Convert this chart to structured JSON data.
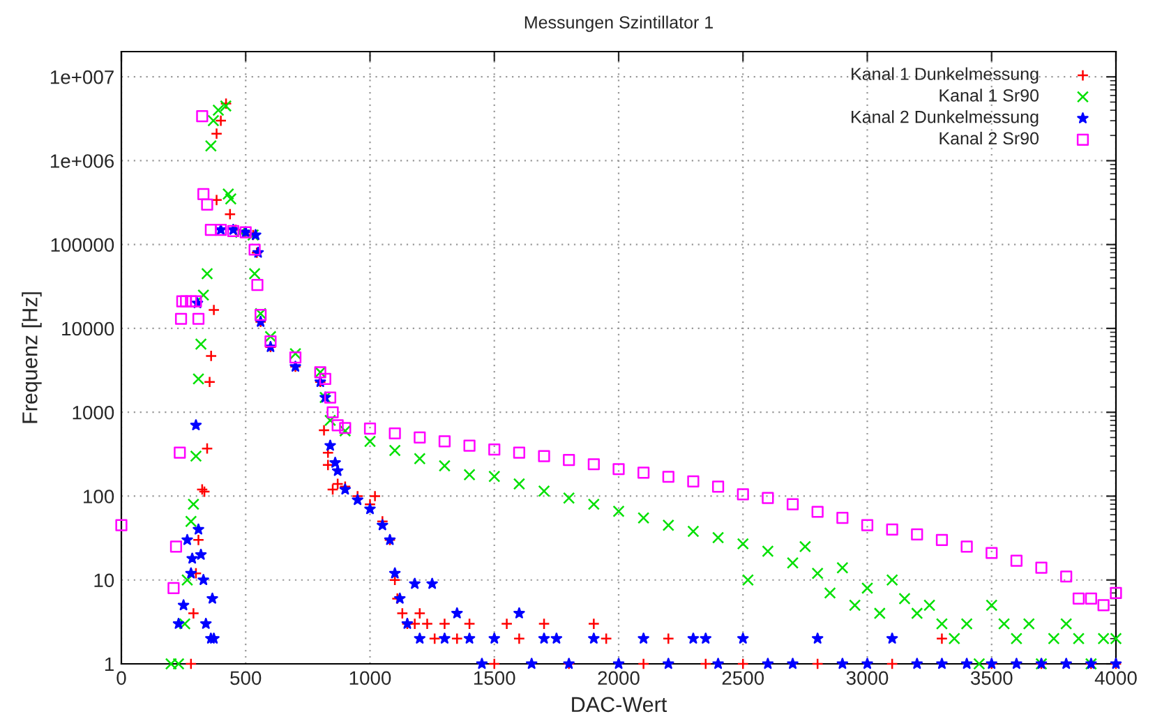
{
  "chart_data": {
    "type": "scatter",
    "title": "Messungen Szintillator 1",
    "xlabel": "DAC-Wert",
    "ylabel": "Frequenz [Hz]",
    "log": "y",
    "grid": true,
    "legend": "top right",
    "xlim": [
      0,
      4000
    ],
    "xticks": [
      0,
      500,
      1000,
      1500,
      2000,
      2500,
      3000,
      3500,
      4000
    ],
    "ylim": [
      1,
      20000000
    ],
    "yticks": [
      1,
      10,
      100,
      1000,
      10000,
      100000,
      {
        "value": 1000000,
        "label": "1e+006"
      },
      {
        "value": 10000000,
        "label": "1e+007"
      }
    ],
    "series": [
      {
        "name": "Kanal 1 Dunkelmessung",
        "color": "#ff0000",
        "marker": "plus",
        "x": [
          280,
          290,
          300,
          310,
          325,
          334,
          345,
          355,
          361,
          372,
          383,
          383,
          400,
          421,
          437,
          460,
          500,
          530,
          545,
          560,
          600,
          700,
          800,
          815,
          831,
          831,
          850,
          870,
          900,
          950,
          1000,
          1020,
          1050,
          1080,
          1100,
          1110,
          1130,
          1150,
          1180,
          1200,
          1230,
          1260,
          1300,
          1350,
          1400,
          1500,
          1550,
          1600,
          1700,
          1800,
          1900,
          1950,
          2100,
          2200,
          2350,
          2500,
          2800,
          3100,
          3300,
          3500,
          3700,
          3900,
          4000
        ],
        "values": [
          1,
          4,
          12,
          30,
          120,
          113,
          370,
          2300,
          4700,
          16600,
          340000,
          2100000,
          3000000,
          4800000,
          230000,
          150000,
          140000,
          130000,
          80000,
          12000,
          6000,
          3500,
          2300,
          610,
          330,
          235,
          120,
          140,
          130,
          100,
          80,
          100,
          50,
          30,
          10,
          6,
          4,
          3,
          3,
          4,
          3,
          2,
          3,
          2,
          3,
          1,
          3,
          2,
          3,
          1,
          3,
          2,
          1,
          2,
          1,
          1,
          1,
          1,
          2,
          1,
          1,
          1,
          1
        ]
      },
      {
        "name": "Kanal 1 Sr90",
        "color": "#00e000",
        "marker": "cross",
        "x": [
          200,
          230,
          255,
          265,
          280,
          290,
          300,
          310,
          320,
          330,
          345,
          360,
          370,
          390,
          420,
          430,
          440,
          480,
          530,
          536,
          560,
          600,
          700,
          800,
          820,
          840,
          900,
          1000,
          1100,
          1200,
          1300,
          1400,
          1500,
          1600,
          1700,
          1800,
          1900,
          2000,
          2100,
          2200,
          2300,
          2400,
          2500,
          2520,
          2600,
          2700,
          2750,
          2800,
          2850,
          2900,
          2950,
          3000,
          3050,
          3100,
          3150,
          3200,
          3250,
          3300,
          3350,
          3400,
          3450,
          3500,
          3550,
          3600,
          3650,
          3700,
          3750,
          3800,
          3850,
          3900,
          3950,
          4000
        ],
        "values": [
          1,
          1,
          3,
          10,
          50,
          80,
          300,
          2500,
          6500,
          25000,
          45000,
          1500000,
          3000000,
          4000000,
          4500000,
          400000,
          350000,
          140000,
          130000,
          45000,
          15000,
          8000,
          5000,
          3000,
          1500,
          800,
          600,
          450,
          350,
          280,
          230,
          180,
          172,
          140,
          115,
          95,
          80,
          66,
          55,
          45,
          38,
          32,
          27,
          10,
          22,
          16,
          25,
          12,
          7,
          14,
          5,
          8,
          4,
          10,
          6,
          4,
          5,
          3,
          2,
          3,
          1,
          5,
          3,
          2,
          3,
          1,
          2,
          3,
          2,
          1,
          2,
          2
        ]
      },
      {
        "name": "Kanal 2 Dunkelmessung",
        "color": "#0000ff",
        "marker": "star",
        "x": [
          230,
          250,
          265,
          280,
          285,
          300,
          306,
          310,
          320,
          330,
          340,
          360,
          366,
          372,
          400,
          450,
          500,
          540,
          550,
          560,
          600,
          700,
          800,
          820,
          840,
          860,
          870,
          900,
          950,
          1000,
          1050,
          1080,
          1100,
          1120,
          1150,
          1180,
          1200,
          1250,
          1300,
          1350,
          1400,
          1450,
          1500,
          1600,
          1650,
          1700,
          1750,
          1800,
          1900,
          2000,
          2100,
          2200,
          2300,
          2350,
          2400,
          2500,
          2600,
          2700,
          2800,
          2900,
          3000,
          3100,
          3200,
          3300,
          3400,
          3500,
          3600,
          3700,
          3800,
          3900,
          4000
        ],
        "values": [
          3,
          5,
          30,
          12,
          18,
          700,
          20000,
          40,
          20,
          10,
          3,
          2,
          6,
          2,
          150000,
          150000,
          140000,
          130000,
          80000,
          12000,
          6000,
          3500,
          2300,
          1500,
          400,
          250,
          200,
          120,
          90,
          70,
          45,
          30,
          12,
          6,
          3,
          9,
          2,
          9,
          2,
          4,
          2,
          1,
          2,
          4,
          1,
          2,
          2,
          1,
          2,
          1,
          2,
          1,
          2,
          2,
          1,
          2,
          1,
          1,
          2,
          1,
          1,
          2,
          1,
          1,
          1,
          1,
          1,
          1,
          1,
          1,
          1
        ]
      },
      {
        "name": "Kanal 2 Sr90",
        "color": "#ff00ff",
        "marker": "square",
        "x": [
          0,
          210,
          220,
          235,
          240,
          245,
          260,
          280,
          300,
          310,
          325,
          330,
          345,
          360,
          400,
          450,
          500,
          536,
          547,
          560,
          600,
          700,
          800,
          820,
          840,
          850,
          870,
          900,
          1000,
          1100,
          1200,
          1300,
          1400,
          1500,
          1600,
          1700,
          1800,
          1900,
          2000,
          2100,
          2200,
          2300,
          2400,
          2500,
          2600,
          2700,
          2800,
          2900,
          3000,
          3100,
          3200,
          3300,
          3400,
          3500,
          3600,
          3700,
          3800,
          3850,
          3900,
          3950,
          4000
        ],
        "values": [
          45,
          8,
          25,
          330,
          13000,
          21000,
          21000,
          21000,
          21000,
          13000,
          3400000,
          400000,
          300000,
          150000,
          150000,
          145000,
          140000,
          87000,
          33000,
          14500,
          7000,
          4500,
          3000,
          2500,
          1500,
          1000,
          700,
          650,
          640,
          560,
          500,
          450,
          400,
          360,
          330,
          300,
          270,
          240,
          210,
          190,
          170,
          150,
          130,
          105,
          95,
          80,
          65,
          55,
          45,
          40,
          35,
          30,
          25,
          21,
          17,
          14,
          11,
          6,
          6,
          5,
          7
        ]
      }
    ]
  }
}
